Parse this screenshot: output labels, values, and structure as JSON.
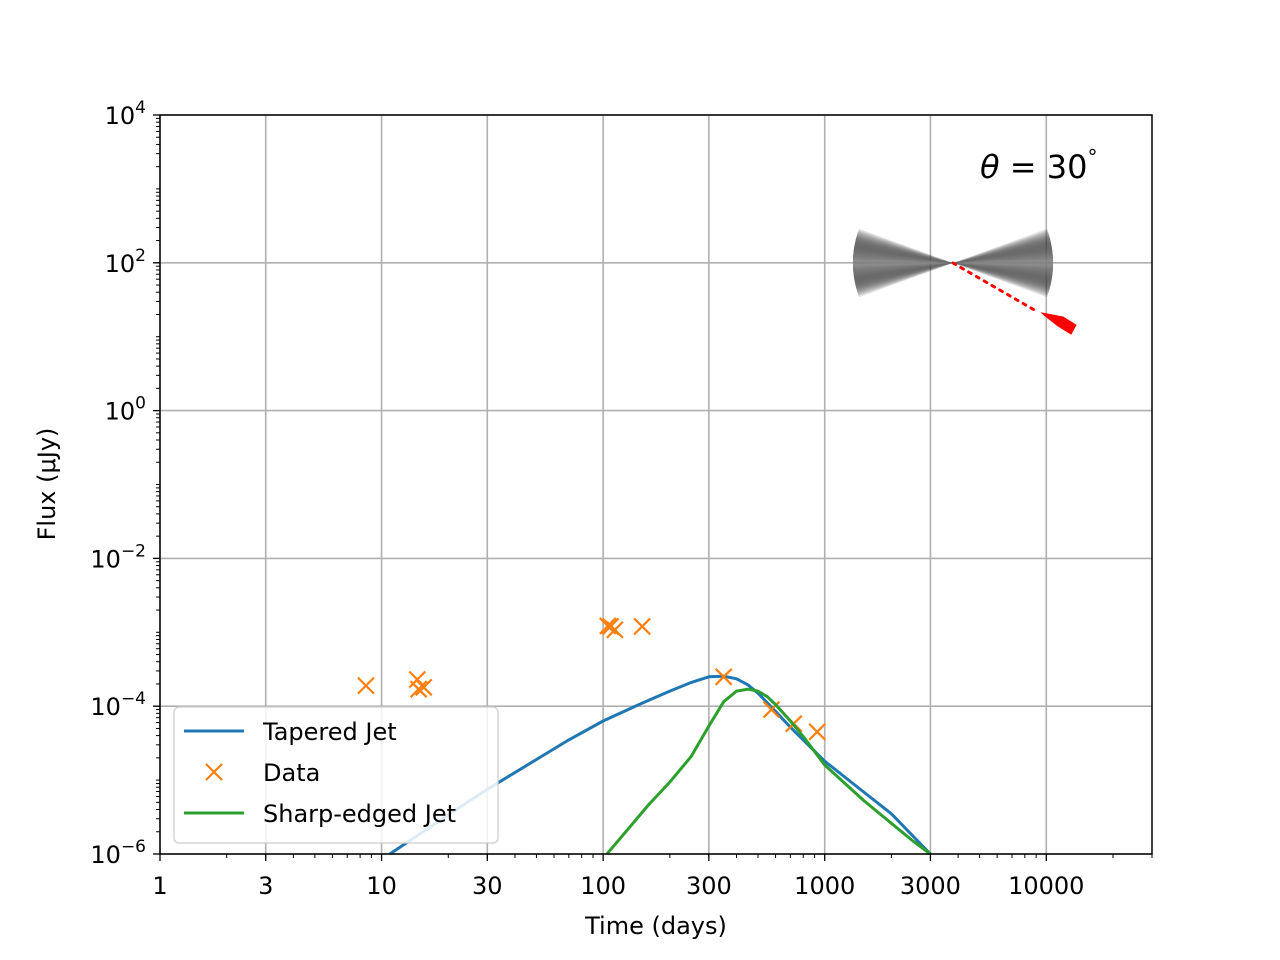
{
  "chart_data": {
    "type": "line",
    "xlabel": "Time (days)",
    "ylabel": "Flux (μJy)",
    "xscale": "log",
    "yscale": "log",
    "xlim": [
      1,
      30000
    ],
    "ylim": [
      1e-06,
      10000.0
    ],
    "grid": true,
    "legend_position": "lower-left",
    "x_ticks": [
      {
        "value": 1,
        "label": "1"
      },
      {
        "value": 3,
        "label": "3"
      },
      {
        "value": 10,
        "label": "10"
      },
      {
        "value": 30,
        "label": "30"
      },
      {
        "value": 100,
        "label": "100"
      },
      {
        "value": 300,
        "label": "300"
      },
      {
        "value": 1000,
        "label": "1000"
      },
      {
        "value": 3000,
        "label": "3000"
      },
      {
        "value": 10000,
        "label": "10000"
      }
    ],
    "y_ticks": [
      {
        "value": 1e-06,
        "base": "10",
        "exp": "−6"
      },
      {
        "value": 0.0001,
        "base": "10",
        "exp": "−4"
      },
      {
        "value": 0.01,
        "base": "10",
        "exp": "−2"
      },
      {
        "value": 1,
        "base": "10",
        "exp": "0"
      },
      {
        "value": 100,
        "base": "10",
        "exp": "2"
      },
      {
        "value": 10000,
        "base": "10",
        "exp": "4"
      }
    ],
    "series": [
      {
        "name": "Tapered Jet",
        "kind": "line",
        "color": "#1f77b4",
        "points": [
          [
            10.9,
            1e-06
          ],
          [
            15,
            1.9e-06
          ],
          [
            20,
            3.4e-06
          ],
          [
            30,
            7.5e-06
          ],
          [
            50,
            1.9e-05
          ],
          [
            70,
            3.5e-05
          ],
          [
            100,
            6.3e-05
          ],
          [
            150,
            0.00011
          ],
          [
            200,
            0.00016
          ],
          [
            250,
            0.00021
          ],
          [
            300,
            0.00025
          ],
          [
            350,
            0.000255
          ],
          [
            400,
            0.000235
          ],
          [
            450,
            0.000195
          ],
          [
            500,
            0.00015
          ],
          [
            600,
            8.5e-05
          ],
          [
            700,
            5.2e-05
          ],
          [
            800,
            3.5e-05
          ],
          [
            1000,
            1.8e-05
          ],
          [
            1500,
            6.9e-06
          ],
          [
            2000,
            3.5e-06
          ],
          [
            3000,
            1e-06
          ]
        ]
      },
      {
        "name": "Data",
        "kind": "scatter",
        "marker": "x",
        "color": "#ff7f0e",
        "points": [
          [
            8.5,
            0.00019
          ],
          [
            14.5,
            0.00023
          ],
          [
            14.7,
            0.00017
          ],
          [
            15.5,
            0.00018
          ],
          [
            105,
            0.00122
          ],
          [
            108,
            0.0012
          ],
          [
            113,
            0.00108
          ],
          [
            150,
            0.0012
          ],
          [
            350,
            0.00025
          ],
          [
            575,
            9e-05
          ],
          [
            725,
            5.8e-05
          ],
          [
            925,
            4.5e-05
          ]
        ]
      },
      {
        "name": "Sharp-edged Jet",
        "kind": "line",
        "color": "#2ca02c",
        "points": [
          [
            104,
            1e-06
          ],
          [
            130,
            2.2e-06
          ],
          [
            160,
            4.6e-06
          ],
          [
            200,
            9.4e-06
          ],
          [
            250,
            2.1e-05
          ],
          [
            300,
            5.4e-05
          ],
          [
            350,
            0.000115
          ],
          [
            400,
            0.00016
          ],
          [
            450,
            0.00017
          ],
          [
            500,
            0.00016
          ],
          [
            550,
            0.000135
          ],
          [
            600,
            0.000105
          ],
          [
            700,
            6.3e-05
          ],
          [
            800,
            3.9e-05
          ],
          [
            1000,
            1.6e-05
          ],
          [
            1500,
            5.3e-06
          ],
          [
            2000,
            2.6e-06
          ],
          [
            2500,
            1.5e-06
          ],
          [
            3000,
            1e-06
          ]
        ]
      }
    ],
    "annotations": [
      {
        "text_symbol": "θ",
        "text_rest": " = 30",
        "text_degree": "°"
      }
    ],
    "inset": {
      "cone_colors": [
        "#000000",
        "#555555",
        "#bbbbbb"
      ],
      "arrow_color": "#ff0000"
    }
  }
}
